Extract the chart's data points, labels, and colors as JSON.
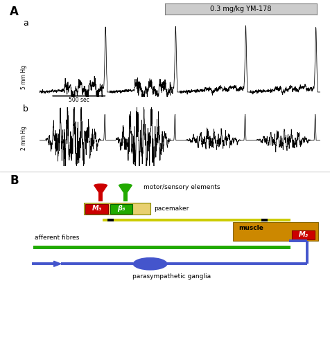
{
  "fig_width": 4.76,
  "fig_height": 5.0,
  "dpi": 100,
  "bg_color": "#ffffff",
  "panel_A_label": "A",
  "panel_B_label": "B",
  "drug_label": "0.3 mg/kg YM-178",
  "trace_a_label": "a",
  "trace_b_label": "b",
  "scale_a_label": "5 mm Hg",
  "scale_b_label": "2 mm Hg",
  "time_scale_label": "500 sec",
  "diagram_labels": {
    "motor_sensory": "motor/sensory elements",
    "pacemaker": "pacemaker",
    "afferent": "afferent fibres",
    "muscle": "muscle",
    "parasympathetic": "parasympathetic ganglia",
    "M3": "M₃",
    "beta3": "β₃"
  },
  "colors": {
    "red_box": "#cc0000",
    "green_box": "#22aa00",
    "yellow_box": "#e8d070",
    "yellow_bar": "#cccc00",
    "orange_box": "#cc8800",
    "blue": "#4455cc",
    "green_bar": "#22aa00",
    "black": "#000000",
    "white": "#ffffff",
    "drug_box": "#cccccc",
    "gray_line": "#888888"
  }
}
